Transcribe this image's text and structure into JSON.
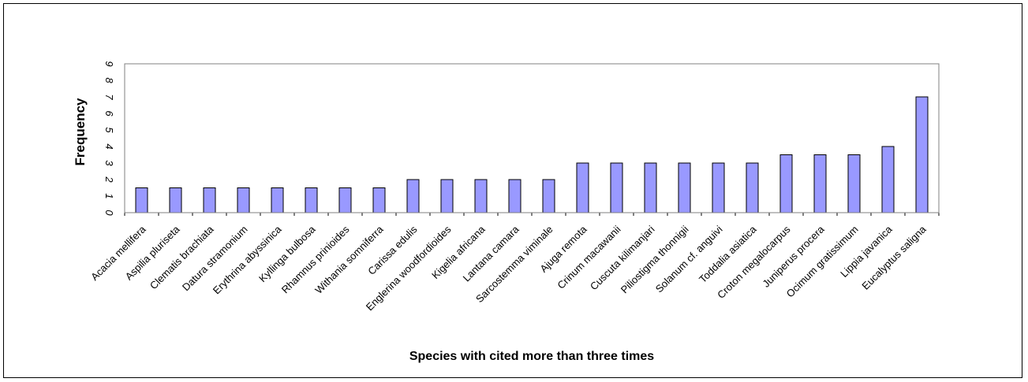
{
  "chart_data": {
    "type": "bar",
    "title": "",
    "xlabel": "Species with cited more than three times",
    "ylabel": "Frequency",
    "ylim": [
      0,
      9
    ],
    "yticks": [
      "0",
      "1",
      "2",
      "3",
      "4",
      "5",
      "6",
      "7",
      "8",
      "9"
    ],
    "grid": false,
    "legend": "none",
    "bar_color": "#9999ff",
    "categories": [
      "Acacia mellifera",
      "Aspilia pluriseta",
      "Clematis brachiata",
      "Datura stramonium",
      "Erythrina abyssinica",
      "Kyllinga bulbosa",
      "Rhamnus prinioides",
      "Withania somniferra",
      "Carissa edulis",
      "Englerina woodfordioides",
      "Kigelia africana",
      "Lantana camara",
      "Sarcostemma viminale",
      "Ajuga remota",
      "Crinum macawanii",
      "Cuscuta kilimanjari",
      "Piliostigma thonnigii",
      "Solanum cf. anguivi",
      "Toddalia asiatica",
      "Croton megalocarpus",
      "Juniperus procera",
      "Ocimum gratissimum",
      "Lippia javanica",
      "Eucalyptus saligna"
    ],
    "values": [
      1.5,
      1.5,
      1.5,
      1.5,
      1.5,
      1.5,
      1.5,
      1.5,
      2,
      2,
      2,
      2,
      2,
      3,
      3,
      3,
      3,
      3,
      3,
      3.5,
      3.5,
      3.5,
      4,
      7
    ]
  }
}
